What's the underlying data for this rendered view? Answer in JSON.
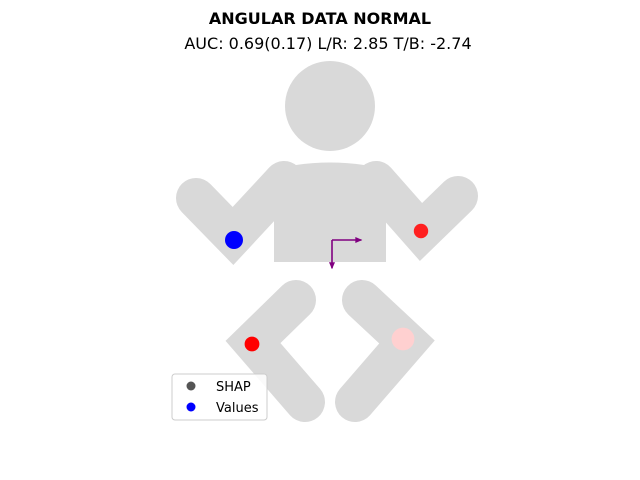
{
  "chart_data": {
    "type": "scatter",
    "title": "ANGULAR DATA NORMAL",
    "subtitle": "AUC: 0.69(0.17) L/R: 2.85 T/B: -2.74",
    "body_color": "#d9d9d9",
    "arrow_color": "#800080",
    "legend": {
      "placement": "lower-left",
      "entries": [
        {
          "label": "SHAP",
          "color": "#555555"
        },
        {
          "label": "Values",
          "color": "#0000ff"
        }
      ]
    },
    "points": [
      {
        "region": "left-arm",
        "color": "#0000ff",
        "magnitude": 1.0
      },
      {
        "region": "right-arm",
        "color": "#ff2020",
        "magnitude": 0.55
      },
      {
        "region": "left-leg",
        "color": "#ff0000",
        "magnitude": 0.6
      },
      {
        "region": "right-leg",
        "color": "#ffd0d0",
        "magnitude": 1.6
      }
    ],
    "arrows": [
      {
        "direction": "right",
        "label": "L/R",
        "value": 2.85
      },
      {
        "direction": "down",
        "label": "T/B",
        "value": -2.74
      }
    ]
  }
}
